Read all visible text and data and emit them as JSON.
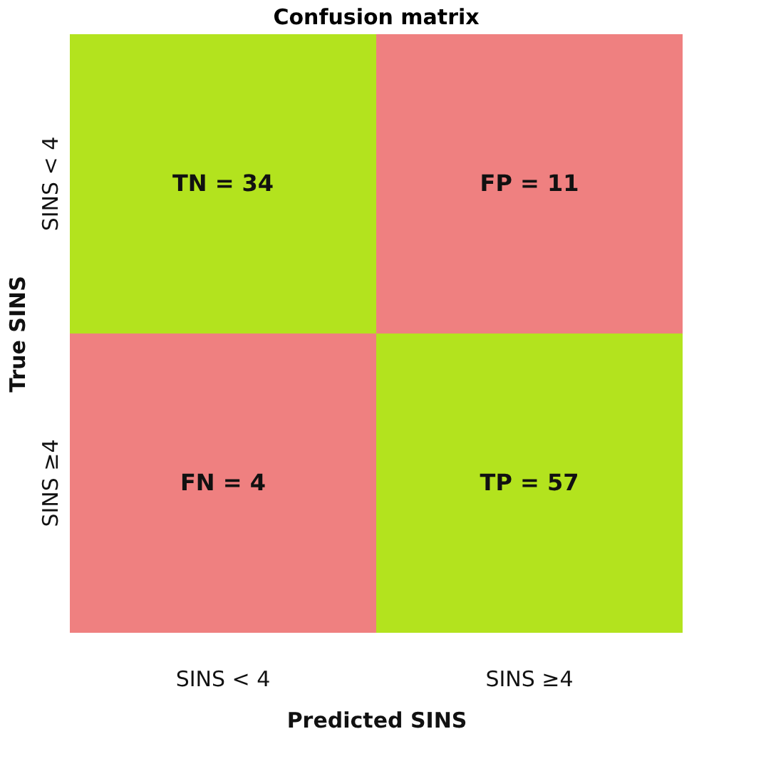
{
  "chart_data": {
    "type": "heatmap",
    "title": "Confusion matrix",
    "xlabel": "Predicted SINS",
    "ylabel": "True SINS",
    "categories": [
      "SINS < 4",
      "SINS ≥4"
    ],
    "y_categories": [
      "SINS < 4",
      "SINS ≥4"
    ],
    "cells": [
      [
        34,
        11
      ],
      [
        4,
        57
      ]
    ],
    "cell_labels": [
      [
        "TN = 34",
        "FP = 11"
      ],
      [
        "FN = 4",
        "TP = 57"
      ]
    ],
    "colors": [
      [
        "#b3e31e",
        "#ef8080"
      ],
      [
        "#ef8080",
        "#b3e31e"
      ]
    ],
    "grid": false
  }
}
